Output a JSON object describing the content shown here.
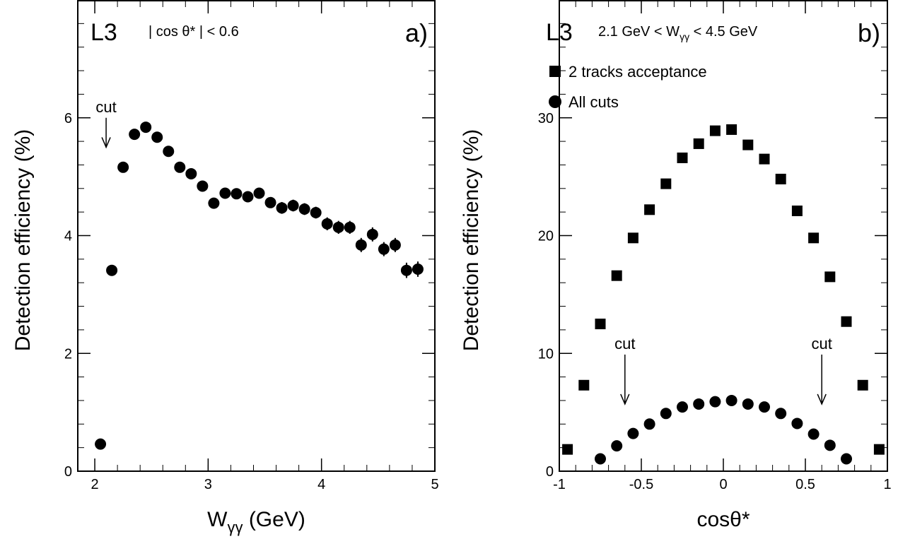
{
  "chart_data": [
    {
      "type": "scatter",
      "panel_label": "a)",
      "experiment": "L3",
      "condition": "| cos θ* | < 0.6",
      "xlabel": "W",
      "xlabel_sub": "γγ",
      "xlabel_unit": " (GeV)",
      "ylabel": "Detection efficiency (%)",
      "xlim": [
        1.85,
        5.0
      ],
      "ylim": [
        0,
        8
      ],
      "xticks": [
        "2",
        "3",
        "4",
        "5"
      ],
      "xtick_values": [
        2,
        3,
        4,
        5
      ],
      "yticks": [
        "0",
        "2",
        "4",
        "6"
      ],
      "ytick_values": [
        0,
        2,
        4,
        6
      ],
      "grid": false,
      "series": [
        {
          "marker": "circle",
          "x": [
            2.05,
            2.15,
            2.25,
            2.35,
            2.45,
            2.55,
            2.65,
            2.75,
            2.85,
            2.95,
            3.05,
            3.15,
            3.25,
            3.35,
            3.45,
            3.55,
            3.65,
            3.75,
            3.85,
            3.95,
            4.05,
            4.15,
            4.25,
            4.35,
            4.45,
            4.55,
            4.65,
            4.75,
            4.85
          ],
          "y": [
            0.46,
            3.41,
            5.16,
            5.72,
            5.84,
            5.67,
            5.43,
            5.16,
            5.05,
            4.84,
            4.55,
            4.72,
            4.71,
            4.66,
            4.72,
            4.56,
            4.47,
            4.51,
            4.45,
            4.39,
            4.2,
            4.14,
            4.14,
            3.84,
            4.02,
            3.77,
            3.84,
            3.41,
            3.43
          ],
          "yerr": [
            0.03,
            0.07,
            0.07,
            0.07,
            0.07,
            0.07,
            0.07,
            0.07,
            0.07,
            0.07,
            0.08,
            0.08,
            0.08,
            0.08,
            0.08,
            0.09,
            0.1,
            0.1,
            0.1,
            0.1,
            0.11,
            0.11,
            0.11,
            0.12,
            0.12,
            0.12,
            0.12,
            0.13,
            0.13
          ]
        }
      ],
      "annotations": [
        {
          "text": "cut",
          "x": 2.1,
          "arrow_from_y": 6.0,
          "arrow_to_y": 5.5
        }
      ]
    },
    {
      "type": "scatter",
      "panel_label": "b)",
      "experiment": "L3",
      "condition_prefix": "2.1 GeV  < W",
      "condition_sub": "γγ",
      "condition_suffix": " < 4.5 GeV",
      "xlabel": "cosθ*",
      "ylabel": "Detection efficiency (%)",
      "xlim": [
        -1,
        1
      ],
      "ylim": [
        0,
        40
      ],
      "xticks": [
        "-1",
        "-0.5",
        "0",
        "0.5",
        "1"
      ],
      "xtick_values": [
        -1,
        -0.5,
        0,
        0.5,
        1
      ],
      "yticks": [
        "0",
        "10",
        "20",
        "30"
      ],
      "ytick_values": [
        0,
        10,
        20,
        30
      ],
      "grid": false,
      "legend_position": "top-left",
      "series": [
        {
          "name": "2 tracks acceptance",
          "marker": "square",
          "x": [
            -0.95,
            -0.85,
            -0.75,
            -0.65,
            -0.55,
            -0.45,
            -0.35,
            -0.25,
            -0.15,
            -0.05,
            0.05,
            0.15,
            0.25,
            0.35,
            0.45,
            0.55,
            0.65,
            0.75,
            0.85,
            0.95
          ],
          "y": [
            1.85,
            7.3,
            12.5,
            16.6,
            19.8,
            22.2,
            24.4,
            26.6,
            27.8,
            28.9,
            29.0,
            27.7,
            26.5,
            24.8,
            22.1,
            19.8,
            16.5,
            12.7,
            7.3,
            1.85
          ]
        },
        {
          "name": "All cuts",
          "marker": "circle",
          "x": [
            -0.75,
            -0.65,
            -0.55,
            -0.45,
            -0.35,
            -0.25,
            -0.15,
            -0.05,
            0.05,
            0.15,
            0.25,
            0.35,
            0.45,
            0.55,
            0.65,
            0.75
          ],
          "y": [
            1.05,
            2.15,
            3.2,
            4.0,
            4.9,
            5.45,
            5.7,
            5.9,
            6.0,
            5.7,
            5.45,
            4.9,
            4.05,
            3.15,
            2.2,
            1.05
          ]
        }
      ],
      "annotations": [
        {
          "text": "cut",
          "x": -0.6,
          "arrow_from_y": 9.9,
          "arrow_to_y": 5.7
        },
        {
          "text": "cut",
          "x": 0.6,
          "arrow_from_y": 9.9,
          "arrow_to_y": 5.7
        }
      ]
    }
  ]
}
